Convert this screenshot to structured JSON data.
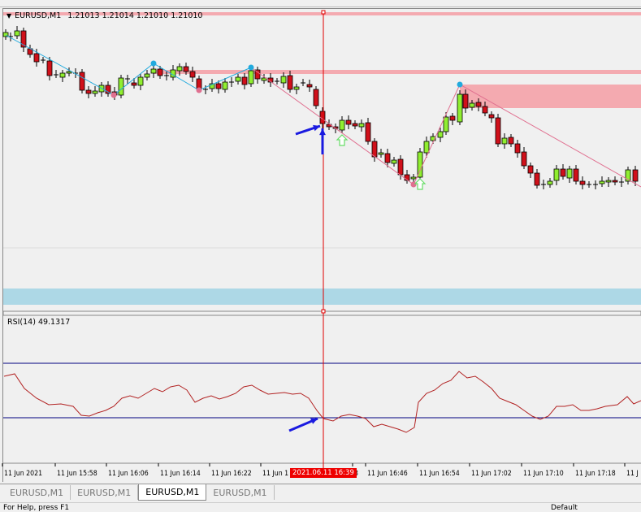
{
  "chart": {
    "symbol": "EURUSD,M1",
    "ohlc": "1.21013 1.21014 1.21010 1.21010",
    "indicator_label": "RSI(14) 49.1317",
    "rsi_levels": [
      70,
      30
    ],
    "cursor_time": "2021.06.11 16:39",
    "time_labels": [
      "11 Jun 2021",
      "11 Jun 15:58",
      "11 Jun 16:06",
      "11 Jun 16:14",
      "11 Jun 16:22",
      "11 Jun 1",
      "3",
      "11 Jun 16:46",
      "11 Jun 16:54",
      "11 Jun 17:02",
      "11 Jun 17:10",
      "11 Jun 17:18",
      "11 J"
    ],
    "colors": {
      "bull": "#90ee30",
      "bear": "#d0101a",
      "zigzag_up": "#22aadd",
      "zigzag_down": "#e07090",
      "zone": "#f4aab0",
      "support_zone": "#add8e6",
      "cursor": "#e00000",
      "levels": "#000080",
      "rsi": "#b22222",
      "arrow": "#1a1ae0"
    }
  },
  "tabs": [
    {
      "label": "EURUSD,M1",
      "active": false
    },
    {
      "label": "EURUSD,M1",
      "active": false
    },
    {
      "label": "EURUSD,M1",
      "active": true
    },
    {
      "label": "EURUSD,M1",
      "active": false
    }
  ],
  "status": {
    "help": "For Help, press F1",
    "profile": "Default"
  }
}
